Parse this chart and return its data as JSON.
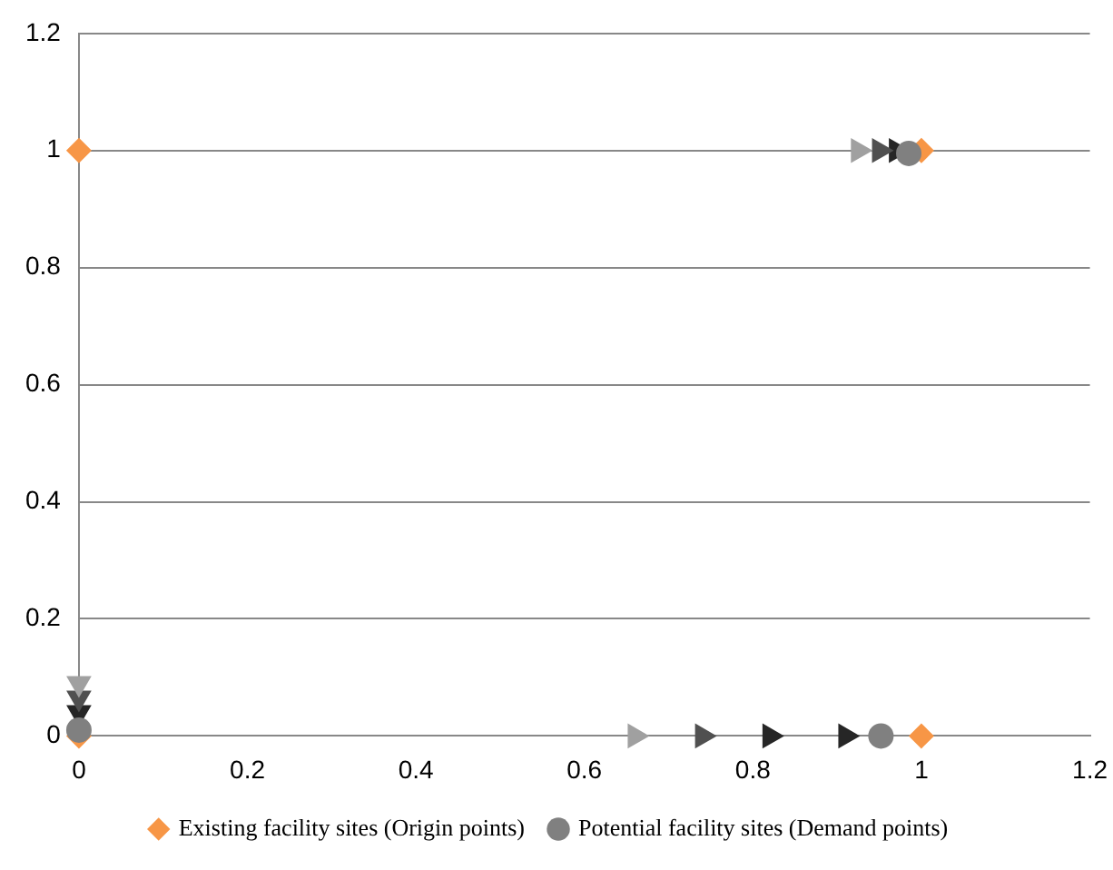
{
  "chart_data": {
    "type": "scatter",
    "xlim": [
      0,
      1.2
    ],
    "ylim": [
      0,
      1.2
    ],
    "xticks": [
      0,
      0.2,
      0.4,
      0.6,
      0.8,
      1,
      1.2
    ],
    "yticks": [
      0,
      0.2,
      0.4,
      0.6,
      0.8,
      1,
      1.2
    ],
    "grid": "y",
    "legend": "bottom",
    "series": [
      {
        "name": "Existing facility sites (Origin points)",
        "color": "#f79646",
        "marker": "diamond",
        "x": [
          0,
          1,
          0,
          1
        ],
        "values": [
          1,
          1,
          0,
          0
        ]
      },
      {
        "name": "Potential facility sites (Demand points)",
        "color": "#808080",
        "marker": "circle",
        "x": [
          0,
          0.985,
          0.952
        ],
        "values": [
          0.01,
          0.995,
          0
        ]
      },
      {
        "color": "#a0a0a0",
        "marker": "triangle",
        "x": [
          0.66,
          0.925,
          0
        ],
        "values": [
          0,
          1,
          0.09
        ]
      },
      {
        "color": "#505050",
        "marker": "triangle",
        "x": [
          0.74,
          0.95,
          0
        ],
        "values": [
          0,
          1,
          0.065
        ]
      },
      {
        "color": "#262626",
        "marker": "triangle",
        "x": [
          0.82,
          0.91,
          0.97,
          0
        ],
        "values": [
          0,
          0,
          1,
          0.04
        ]
      }
    ]
  }
}
